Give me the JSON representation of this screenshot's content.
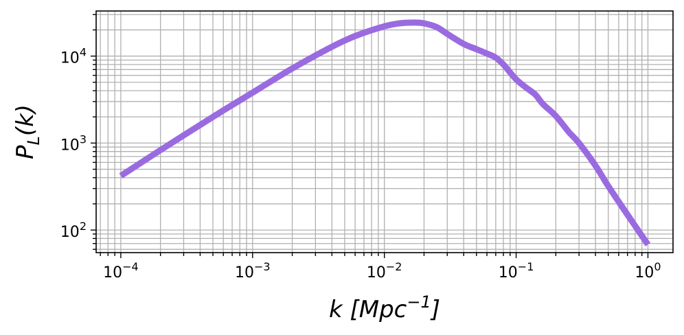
{
  "chart_data": {
    "type": "line",
    "xscale": "log",
    "yscale": "log",
    "xlim": [
      6.5e-05,
      1.55
    ],
    "ylim": [
      55,
      33000
    ],
    "grid": true,
    "grid_minor": true,
    "xlabel_base": "k [Mpc",
    "xlabel_exp": "−1",
    "xlabel_close": "]",
    "ylabel_main": "P",
    "ylabel_sub": "L",
    "ylabel_close": "(k)",
    "xticks": [
      {
        "value": 0.0001,
        "base": "10",
        "exp": "−4"
      },
      {
        "value": 0.001,
        "base": "10",
        "exp": "−3"
      },
      {
        "value": 0.01,
        "base": "10",
        "exp": "−2"
      },
      {
        "value": 0.1,
        "base": "10",
        "exp": "−1"
      },
      {
        "value": 1,
        "base": "10",
        "exp": "0"
      }
    ],
    "yticks": [
      {
        "value": 100,
        "base": "10",
        "exp": "2"
      },
      {
        "value": 1000,
        "base": "10",
        "exp": "3"
      },
      {
        "value": 10000,
        "base": "10",
        "exp": "4"
      }
    ],
    "series": [
      {
        "color": "#9a6be0",
        "x": [
          0.0001,
          0.0002,
          0.0005,
          0.001,
          0.002,
          0.004,
          0.006,
          0.01,
          0.013,
          0.017,
          0.02,
          0.025,
          0.03,
          0.04,
          0.05,
          0.06,
          0.07,
          0.08,
          0.1,
          0.12,
          0.14,
          0.16,
          0.2,
          0.25,
          0.3,
          0.4,
          0.5,
          0.7,
          1.0
        ],
        "y": [
          420,
          830,
          2000,
          3800,
          7200,
          12800,
          17000,
          22000,
          23800,
          24300,
          23800,
          21500,
          18000,
          13800,
          12000,
          10700,
          9600,
          8000,
          5400,
          4300,
          3600,
          2800,
          2050,
          1350,
          1000,
          550,
          320,
          150,
          68
        ]
      }
    ]
  }
}
